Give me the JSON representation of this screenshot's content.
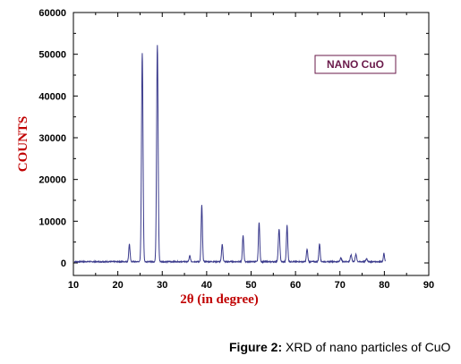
{
  "chart_data": {
    "type": "line",
    "xlabel": "2θ (in degree)",
    "ylabel": "COUNTS",
    "xlim": [
      10,
      90
    ],
    "ylim": [
      -3000,
      60000
    ],
    "xticks": [
      "10",
      "20",
      "30",
      "40",
      "50",
      "60",
      "70",
      "80",
      "90"
    ],
    "xtick_values": [
      10,
      20,
      30,
      40,
      50,
      60,
      70,
      80,
      90
    ],
    "yticks": [
      "0",
      "10000",
      "20000",
      "30000",
      "40000",
      "50000",
      "60000"
    ],
    "ytick_values": [
      0,
      10000,
      20000,
      30000,
      40000,
      50000,
      60000
    ],
    "grid": false,
    "legend": {
      "label": "NANO CuO",
      "placement": "top-right"
    },
    "baseline": 300,
    "peaks": [
      {
        "x": 22.6,
        "y": 4200,
        "w": 0.35
      },
      {
        "x": 25.5,
        "y": 50000,
        "w": 0.4
      },
      {
        "x": 28.9,
        "y": 52000,
        "w": 0.4
      },
      {
        "x": 36.2,
        "y": 1400,
        "w": 0.35
      },
      {
        "x": 38.9,
        "y": 13500,
        "w": 0.35
      },
      {
        "x": 43.5,
        "y": 4200,
        "w": 0.35
      },
      {
        "x": 48.2,
        "y": 6300,
        "w": 0.35
      },
      {
        "x": 51.8,
        "y": 9500,
        "w": 0.35
      },
      {
        "x": 56.3,
        "y": 7800,
        "w": 0.4
      },
      {
        "x": 58.1,
        "y": 8700,
        "w": 0.35
      },
      {
        "x": 62.6,
        "y": 3000,
        "w": 0.35
      },
      {
        "x": 65.4,
        "y": 4300,
        "w": 0.35
      },
      {
        "x": 70.2,
        "y": 900,
        "w": 0.4
      },
      {
        "x": 72.5,
        "y": 1600,
        "w": 0.4
      },
      {
        "x": 73.6,
        "y": 1700,
        "w": 0.4
      },
      {
        "x": 76.0,
        "y": 700,
        "w": 0.4
      },
      {
        "x": 79.9,
        "y": 2000,
        "w": 0.3
      }
    ],
    "x_start": 10.2,
    "x_end": 80.2
  },
  "colors": {
    "line": "#3a3a8c",
    "axis_label": "#c00000",
    "legend_text": "#6a1a4a",
    "legend_border": "#6a1a4a"
  },
  "caption": {
    "bold": "Figure 2:",
    "text": " XRD of nano particles of CuO"
  }
}
